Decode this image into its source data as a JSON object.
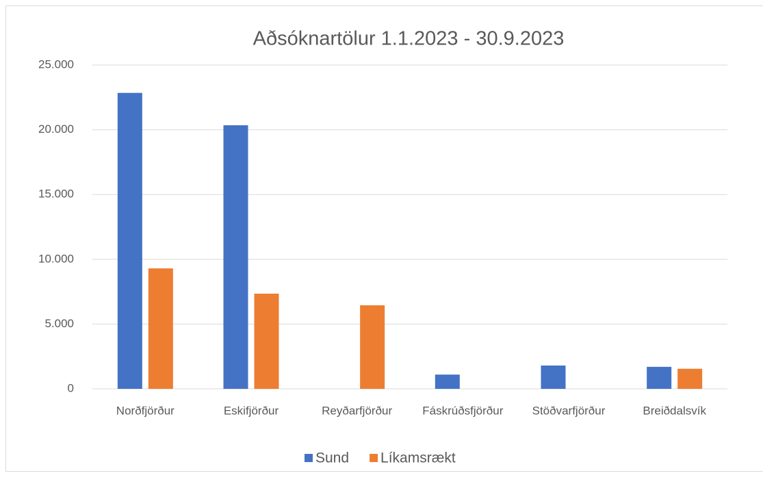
{
  "chart_data": {
    "type": "bar",
    "title": "Aðsóknartölur 1.1.2023 - 30.9.2023",
    "categories": [
      "Norðfjörður",
      "Eskifjörður",
      "Reyðarfjörður",
      "Fáskrúðsfjörður",
      "Stöðvarfjörður",
      "Breiðdalsvík"
    ],
    "series": [
      {
        "name": "Sund",
        "color": "#4472c4",
        "values": [
          22850,
          20350,
          0,
          1100,
          1800,
          1700
        ]
      },
      {
        "name": "Líkamsrækt",
        "color": "#ed7d31",
        "values": [
          9300,
          7350,
          6450,
          0,
          0,
          1550
        ]
      }
    ],
    "ylim": [
      0,
      25000
    ],
    "yticks": [
      0,
      {
        "value": 5000,
        "label": "5.000"
      },
      {
        "value": 10000,
        "label": "10.000"
      },
      {
        "value": 15000,
        "label": "15.000"
      },
      {
        "value": 20000,
        "label": "20.000"
      },
      {
        "value": 25000,
        "label": "25.000"
      }
    ],
    "grid": true,
    "legend": "bottom"
  }
}
